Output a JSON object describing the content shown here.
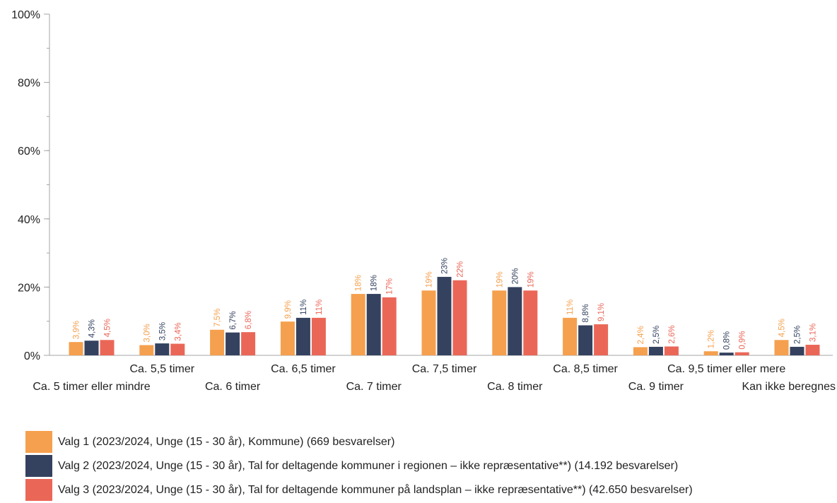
{
  "chart_data": {
    "type": "bar",
    "categories": [
      "Ca. 5 timer eller mindre",
      "Ca. 5,5 timer",
      "Ca. 6 timer",
      "Ca. 6,5 timer",
      "Ca. 7 timer",
      "Ca. 7,5 timer",
      "Ca. 8 timer",
      "Ca. 8,5 timer",
      "Ca. 9 timer",
      "Ca. 9,5 timer eller mere",
      "Kan ikke beregnes"
    ],
    "series": [
      {
        "name": "Valg 1 (2023/2024, Unge (15 - 30 år), Kommune) (669 besvarelser)",
        "color": "#F5A04E",
        "values": [
          3.9,
          3.0,
          7.5,
          9.9,
          18,
          19,
          19,
          11,
          2.4,
          1.2,
          4.5
        ],
        "labels": [
          "3,9%",
          "3,0%",
          "7,5%",
          "9,9%",
          "18%",
          "19%",
          "19%",
          "11%",
          "2,4%",
          "1,2%",
          "4,5%"
        ]
      },
      {
        "name": "Valg 2 (2023/2024, Unge (15 - 30 år), Tal for deltagende kommuner i regionen – ikke repræsentative**) (14.192 besvarelser)",
        "color": "#34425F",
        "values": [
          4.3,
          3.5,
          6.7,
          11,
          18,
          23,
          20,
          8.8,
          2.5,
          0.8,
          2.5
        ],
        "labels": [
          "4,3%",
          "3,5%",
          "6,7%",
          "11%",
          "18%",
          "23%",
          "20%",
          "8,8%",
          "2,5%",
          "0,8%",
          "2,5%"
        ]
      },
      {
        "name": "Valg 3 (2023/2024, Unge (15 - 30 år), Tal for deltagende kommuner på landsplan – ikke repræsentative**) (42.650 besvarelser)",
        "color": "#EA6758",
        "values": [
          4.5,
          3.4,
          6.8,
          11,
          17,
          22,
          19,
          9.1,
          2.6,
          0.9,
          3.1
        ],
        "labels": [
          "4,5%",
          "3,4%",
          "6,8%",
          "11%",
          "17%",
          "22%",
          "19%",
          "9,1%",
          "2,6%",
          "0,9%",
          "3,1%"
        ]
      }
    ],
    "y_ticks": [
      {
        "value": 0,
        "label": "0%"
      },
      {
        "value": 20,
        "label": "20%"
      },
      {
        "value": 40,
        "label": "40%"
      },
      {
        "value": 60,
        "label": "60%"
      },
      {
        "value": 80,
        "label": "80%"
      },
      {
        "value": 100,
        "label": "100%"
      }
    ],
    "ylim": [
      0,
      100
    ],
    "grid": false,
    "legend_position": "bottom"
  }
}
